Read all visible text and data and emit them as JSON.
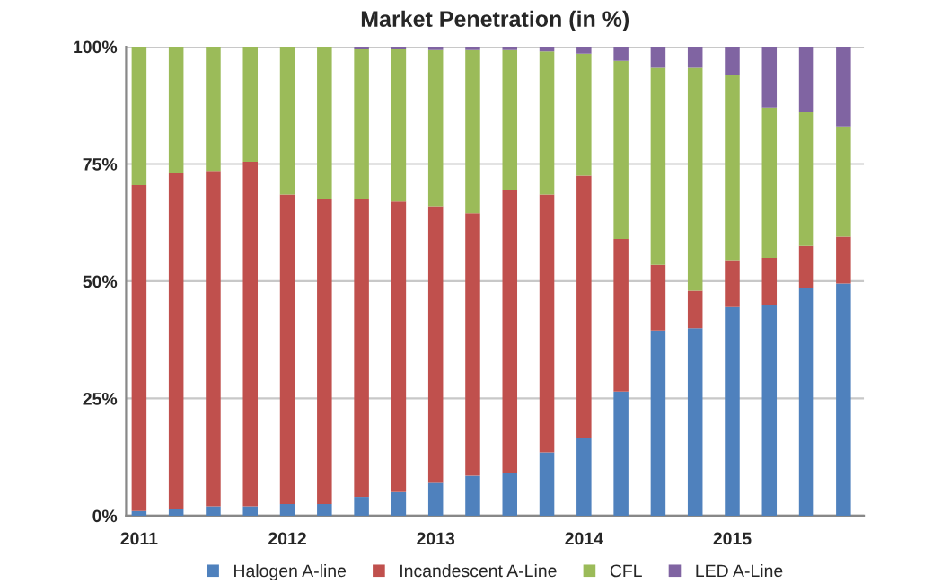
{
  "chart_data": {
    "type": "bar",
    "title": "Market Penetration (in %)",
    "stacked": true,
    "categories": [
      "2011",
      null,
      null,
      null,
      "2012",
      null,
      null,
      null,
      "2013",
      null,
      null,
      null,
      "2014",
      null,
      null,
      null,
      "2015",
      null,
      null,
      null
    ],
    "series": [
      {
        "name": "Halogen A-line",
        "color": "#4f81bd",
        "values": [
          1,
          1.5,
          2,
          2,
          2.5,
          2.5,
          4,
          5,
          7,
          8.5,
          9,
          13.5,
          16.5,
          26.5,
          39.5,
          40,
          44.5,
          45,
          48.5,
          49.5
        ]
      },
      {
        "name": "Incandescent A-Line",
        "color": "#c0504d",
        "values": [
          69.5,
          71.5,
          71.5,
          73.5,
          66,
          65,
          63.5,
          62,
          59,
          56,
          60.5,
          55,
          56,
          32.5,
          14,
          8,
          10,
          10,
          9,
          10
        ]
      },
      {
        "name": "CFL",
        "color": "#9bbb59",
        "values": [
          29.5,
          27,
          26.5,
          24.5,
          31.5,
          32.5,
          32,
          32.5,
          33.3,
          34.8,
          29.8,
          30.5,
          26,
          38,
          42,
          47.5,
          39.5,
          32,
          28.5,
          23.5
        ]
      },
      {
        "name": "LED A-Line",
        "color": "#8064a2",
        "values": [
          0,
          0,
          0,
          0,
          0,
          0,
          0.5,
          0.5,
          0.7,
          0.7,
          0.7,
          1,
          1.5,
          3,
          4.5,
          4.5,
          6,
          13,
          14,
          17
        ]
      }
    ],
    "ylim": [
      0,
      100
    ],
    "yticks": [
      {
        "value": 0,
        "label": "0%"
      },
      {
        "value": 25,
        "label": "25%"
      },
      {
        "value": 50,
        "label": "50%"
      },
      {
        "value": 75,
        "label": "75%"
      },
      {
        "value": 100,
        "label": "100%"
      }
    ],
    "grid": "y",
    "legend": "bottom"
  }
}
